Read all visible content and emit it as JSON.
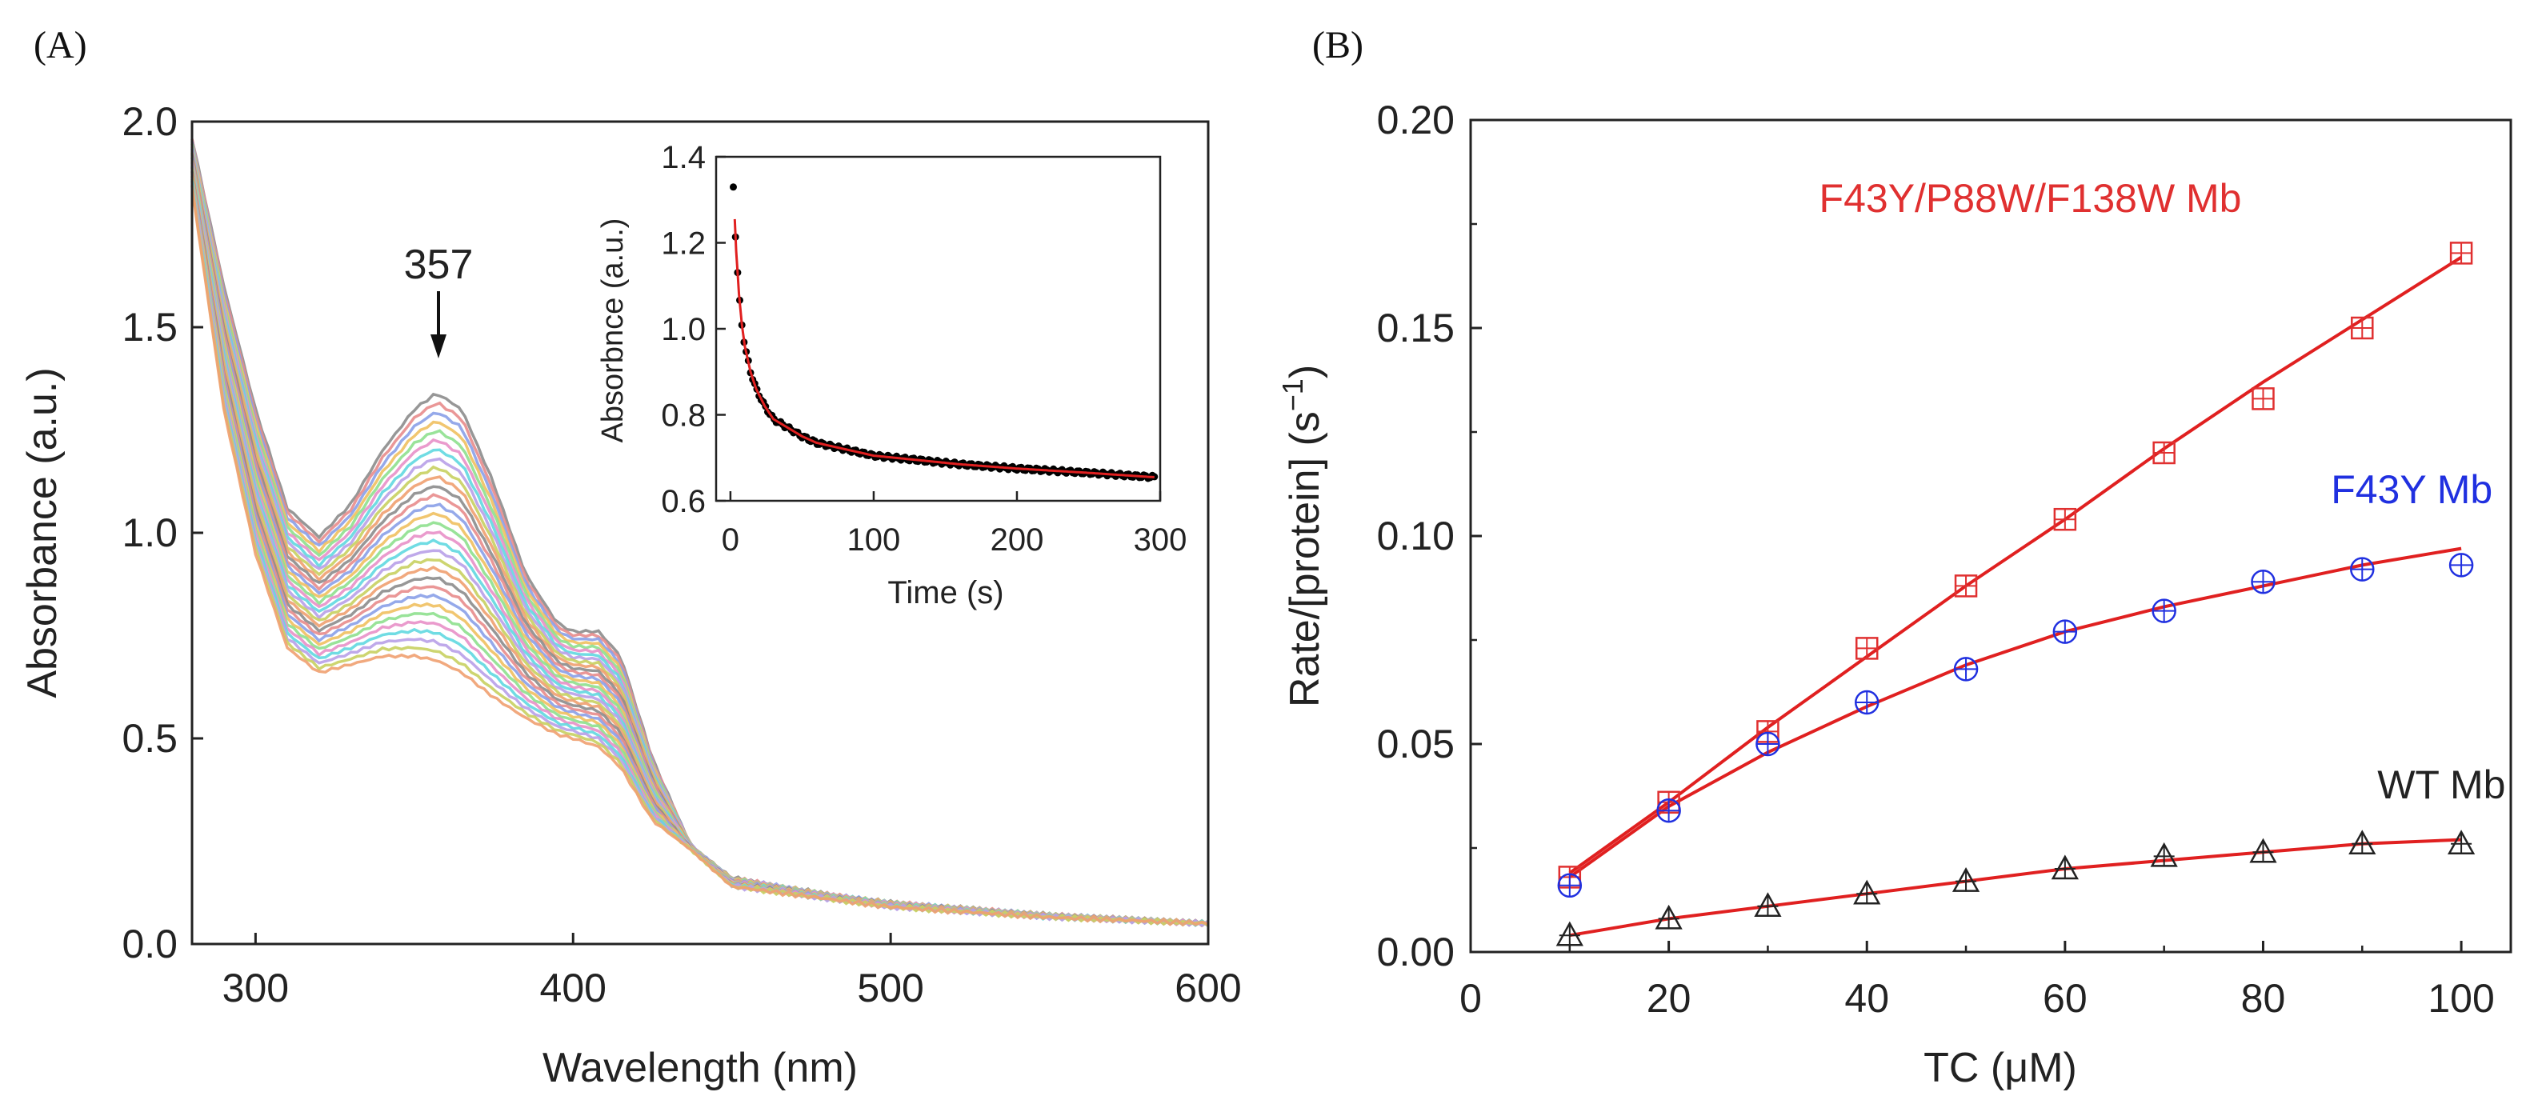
{
  "chart_data": [
    {
      "id": "A",
      "panel_label": "(A)",
      "type": "line",
      "xlabel": "Wavelength  (nm)",
      "ylabel": "Absorbance  (a.u.)",
      "xlim": [
        280,
        600
      ],
      "ylim": [
        0,
        2.0
      ],
      "xticks": [
        300,
        400,
        500,
        600
      ],
      "yticks": [
        0.0,
        0.5,
        1.0,
        1.5,
        2.0
      ],
      "ytick_labels": [
        "0.0",
        "0.5",
        "1.0",
        "1.5",
        "2.0"
      ],
      "annotation": {
        "text": "357",
        "x": 357,
        "y": 1.34
      },
      "series_description": "Repeated spectra over time; decreasing band at 357 nm, shoulder near 408 nm, isosbestic point near 437 nm",
      "series_count": 30,
      "first_spectrum": {
        "x": [
          280,
          290,
          300,
          310,
          320,
          330,
          340,
          350,
          357,
          365,
          375,
          385,
          395,
          400,
          408,
          415,
          425,
          437,
          450,
          480,
          500,
          550,
          600
        ],
        "y": [
          1.96,
          1.6,
          1.3,
          1.06,
          0.99,
          1.07,
          1.2,
          1.3,
          1.34,
          1.3,
          1.12,
          0.9,
          0.78,
          0.76,
          0.76,
          0.7,
          0.45,
          0.24,
          0.16,
          0.12,
          0.1,
          0.07,
          0.05
        ]
      },
      "last_spectrum": {
        "x": [
          280,
          290,
          300,
          310,
          320,
          330,
          340,
          350,
          357,
          365,
          375,
          385,
          395,
          400,
          408,
          415,
          425,
          437,
          450,
          480,
          500,
          550,
          600
        ],
        "y": [
          1.84,
          1.3,
          0.95,
          0.72,
          0.66,
          0.68,
          0.7,
          0.7,
          0.69,
          0.66,
          0.6,
          0.55,
          0.51,
          0.5,
          0.48,
          0.43,
          0.3,
          0.23,
          0.14,
          0.11,
          0.09,
          0.065,
          0.05
        ]
      },
      "palette": [
        "#8c8c8c",
        "#e88c8c",
        "#8aa0e8",
        "#f0c060",
        "#8ee08e",
        "#e890c8",
        "#60d8e0",
        "#b8a0e8",
        "#c8d060",
        "#f0a070"
      ],
      "inset": {
        "type": "scatter",
        "xlabel": "Time (s)",
        "ylabel": "Absorbnce (a.u.)",
        "xlim": [
          -10,
          300
        ],
        "ylim": [
          0.6,
          1.4
        ],
        "xticks": [
          0,
          100,
          200,
          300
        ],
        "yticks": [
          0.6,
          0.8,
          1.0,
          1.2,
          1.4
        ],
        "ytick_labels": [
          "0.6",
          "0.8",
          "1.0",
          "1.2",
          "1.4"
        ],
        "x": [
          2,
          4,
          6,
          8,
          10,
          14,
          18,
          24,
          30,
          40,
          50,
          60,
          80,
          100,
          130,
          160,
          200,
          250,
          295
        ],
        "y": [
          1.33,
          1.18,
          1.08,
          1.01,
          0.96,
          0.9,
          0.86,
          0.82,
          0.79,
          0.77,
          0.75,
          0.735,
          0.72,
          0.705,
          0.695,
          0.685,
          0.675,
          0.665,
          0.655
        ],
        "fit_color": "#e02020",
        "point_color": "#000000"
      }
    },
    {
      "id": "B",
      "panel_label": "(B)",
      "type": "scatter",
      "xlabel": "TC (μM)",
      "ylabel": "Rate/[protein] (s",
      "ylabel_sup": "−1",
      "ylabel_end": ")",
      "xlim": [
        0,
        105
      ],
      "ylim": [
        0,
        0.2
      ],
      "xticks": [
        0,
        20,
        40,
        60,
        80,
        100
      ],
      "yticks": [
        0.0,
        0.05,
        0.1,
        0.15,
        0.2
      ],
      "ytick_labels": [
        "0.00",
        "0.05",
        "0.10",
        "0.15",
        "0.20"
      ],
      "fit_color": "#e02020",
      "series": [
        {
          "name": "F43Y/P88W/F138W Mb",
          "marker": "square",
          "color": "#e03030",
          "label_pos": {
            "x": 56.5,
            "y": 0.181
          },
          "x": [
            10,
            20,
            30,
            40,
            50,
            60,
            70,
            80,
            90,
            100
          ],
          "y": [
            0.018,
            0.036,
            0.053,
            0.073,
            0.088,
            0.104,
            0.12,
            0.133,
            0.15,
            0.168
          ],
          "fit_y": [
            0.019,
            0.036,
            0.054,
            0.071,
            0.088,
            0.104,
            0.121,
            0.137,
            0.152,
            0.167
          ]
        },
        {
          "name": "F43Y Mb",
          "marker": "circle",
          "color": "#2030e0",
          "label_pos": {
            "x": 95,
            "y": 0.111
          },
          "x": [
            10,
            20,
            30,
            40,
            50,
            60,
            70,
            80,
            90,
            100
          ],
          "y": [
            0.016,
            0.034,
            0.05,
            0.06,
            0.068,
            0.077,
            0.082,
            0.089,
            0.092,
            0.093
          ],
          "fit_y": [
            0.018,
            0.035,
            0.048,
            0.059,
            0.069,
            0.077,
            0.083,
            0.088,
            0.093,
            0.097
          ]
        },
        {
          "name": "WT Mb",
          "marker": "triangle",
          "color": "#222222",
          "label_pos": {
            "x": 98,
            "y": 0.04
          },
          "x": [
            10,
            20,
            30,
            40,
            50,
            60,
            70,
            80,
            90,
            100
          ],
          "y": [
            0.004,
            0.008,
            0.011,
            0.014,
            0.017,
            0.02,
            0.023,
            0.024,
            0.026,
            0.026
          ],
          "fit_y": [
            0.004,
            0.008,
            0.011,
            0.014,
            0.017,
            0.02,
            0.022,
            0.024,
            0.026,
            0.027
          ]
        }
      ]
    }
  ]
}
